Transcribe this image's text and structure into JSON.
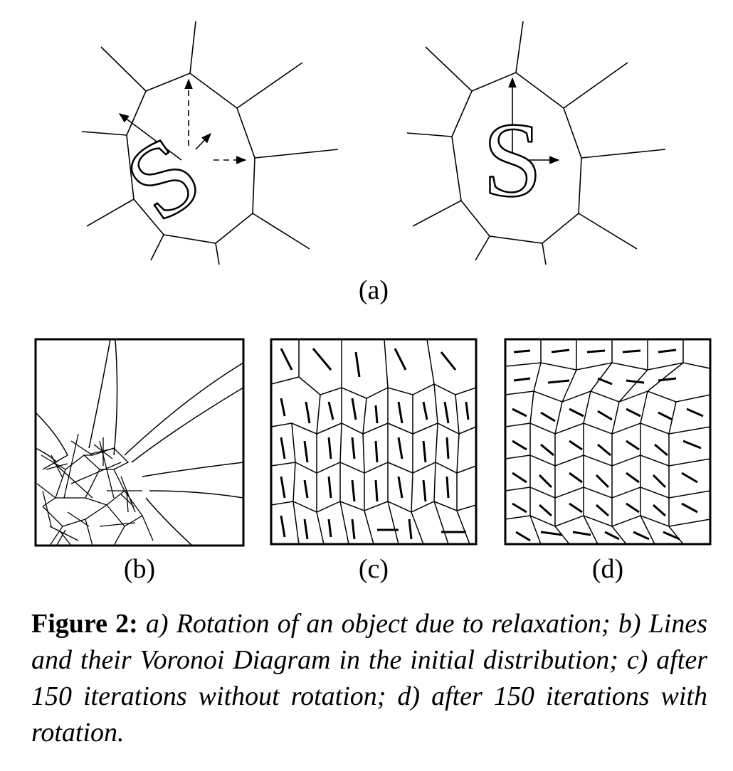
{
  "figure": {
    "labels": {
      "a": "(a)",
      "b": "(b)",
      "c": "(c)",
      "d": "(d)"
    },
    "glyph": "S",
    "caption": {
      "lead": "Figure 2:",
      "text": "a) Rotation of an object due to relaxation; b) Lines and their Voronoi Diagram in the initial distribution; c) after 150 iterations without rotation; d) after 150 iterations with rotation."
    }
  }
}
